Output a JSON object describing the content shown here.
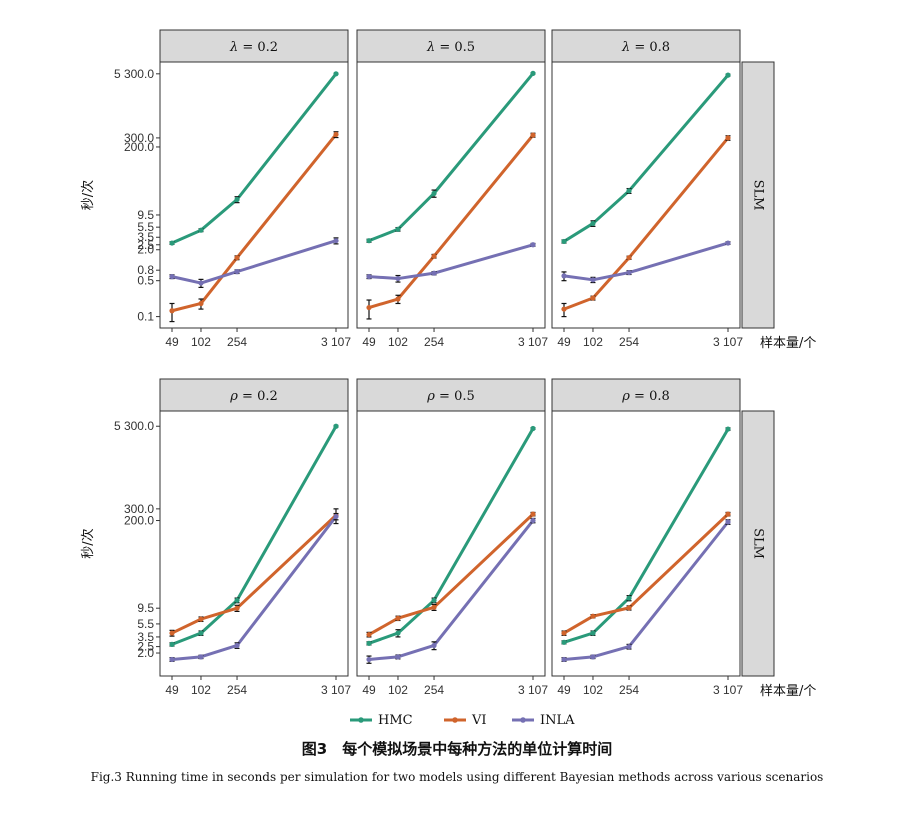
{
  "chart_data": {
    "type": "line",
    "x_label": "样本量/个",
    "y_label": "秒/次",
    "x": [
      49,
      102,
      254,
      3107
    ],
    "x_tick_labels": [
      "49",
      "102",
      "254",
      "3 107"
    ],
    "legend_position": "bottom",
    "series_styles": [
      {
        "name": "HMC",
        "color": "#2a9a7a"
      },
      {
        "name": "VI",
        "color": "#d0642c"
      },
      {
        "name": "INLA",
        "color": "#7570b3"
      }
    ],
    "rows": [
      {
        "row_label": "SLM",
        "y_ticks": [
          0.1,
          0.5,
          0.8,
          2.0,
          2.5,
          3.5,
          5.5,
          9.5,
          200.0,
          300.0,
          5300.0
        ],
        "y_tick_labels": [
          "0.1",
          "0.5",
          "0.8",
          "2.0",
          "2.5",
          "3.5",
          "5.5",
          "9.5",
          "200.0",
          "300.0",
          "5 300.0"
        ],
        "ylim": [
          0.06,
          9000
        ],
        "panels": [
          {
            "strip": {
              "symbol": "λ",
              "text": " = 0.2"
            },
            "series": [
              {
                "name": "HMC",
                "values": [
                  2.7,
                  4.8,
                  19,
                  5300
                ],
                "err": [
                  0.15,
                  0.3,
                  2.5,
                  120
                ]
              },
              {
                "name": "VI",
                "values": [
                  0.13,
                  0.18,
                  1.4,
                  350
                ],
                "err": [
                  0.05,
                  0.04,
                  0.12,
                  45
                ]
              },
              {
                "name": "INLA",
                "values": [
                  0.6,
                  0.45,
                  0.75,
                  3.0
                ],
                "err": [
                  0.05,
                  0.08,
                  0.06,
                  0.4
                ]
              }
            ]
          },
          {
            "strip": {
              "symbol": "λ",
              "text": " = 0.5"
            },
            "series": [
              {
                "name": "HMC",
                "values": [
                  3.0,
                  5.0,
                  25,
                  5400
                ],
                "err": [
                  0.2,
                  0.4,
                  4,
                  150
                ]
              },
              {
                "name": "VI",
                "values": [
                  0.15,
                  0.22,
                  1.5,
                  340
                ],
                "err": [
                  0.06,
                  0.04,
                  0.12,
                  30
                ]
              },
              {
                "name": "INLA",
                "values": [
                  0.6,
                  0.55,
                  0.7,
                  2.5
                ],
                "err": [
                  0.05,
                  0.08,
                  0.05,
                  0.15
                ]
              }
            ]
          },
          {
            "strip": {
              "symbol": "λ",
              "text": " = 0.8"
            },
            "series": [
              {
                "name": "HMC",
                "values": [
                  2.9,
                  6.5,
                  28,
                  5000
                ],
                "err": [
                  0.2,
                  0.8,
                  3,
                  200
                ]
              },
              {
                "name": "VI",
                "values": [
                  0.14,
                  0.23,
                  1.4,
                  300
                ],
                "err": [
                  0.04,
                  0.02,
                  0.1,
                  30
                ]
              },
              {
                "name": "INLA",
                "values": [
                  0.62,
                  0.52,
                  0.72,
                  2.7
                ],
                "err": [
                  0.12,
                  0.06,
                  0.06,
                  0.15
                ]
              }
            ]
          }
        ]
      },
      {
        "row_label": "SLM",
        "y_ticks": [
          2.0,
          2.5,
          3.5,
          5.5,
          9.5,
          200.0,
          300.0,
          5300.0
        ],
        "y_tick_labels": [
          "2.0",
          "2.5",
          "3.5",
          "5.5",
          "9.5",
          "200.0",
          "300.0",
          "5 300.0"
        ],
        "ylim": [
          0.9,
          9000
        ],
        "panels": [
          {
            "strip": {
              "symbol": "ρ",
              "text": " = 0.2"
            },
            "series": [
              {
                "name": "HMC",
                "values": [
                  2.7,
                  4.0,
                  12.5,
                  5300
                ],
                "err": [
                  0.15,
                  0.3,
                  1.0,
                  150
                ]
              },
              {
                "name": "VI",
                "values": [
                  4.0,
                  6.5,
                  9.5,
                  240
                ],
                "err": [
                  0.4,
                  0.5,
                  1.0,
                  60
                ]
              },
              {
                "name": "INLA",
                "values": [
                  1.6,
                  1.75,
                  2.6,
                  230
                ],
                "err": [
                  0.1,
                  0.1,
                  0.25,
                  25
                ]
              }
            ]
          },
          {
            "strip": {
              "symbol": "ρ",
              "text": " = 0.5"
            },
            "series": [
              {
                "name": "HMC",
                "values": [
                  2.8,
                  4.0,
                  12.5,
                  4900
                ],
                "err": [
                  0.15,
                  0.5,
                  1.0,
                  150
                ]
              },
              {
                "name": "VI",
                "values": [
                  3.8,
                  6.7,
                  9.8,
                  250
                ],
                "err": [
                  0.3,
                  0.5,
                  1.0,
                  15
                ]
              },
              {
                "name": "INLA",
                "values": [
                  1.6,
                  1.75,
                  2.6,
                  200
                ],
                "err": [
                  0.2,
                  0.12,
                  0.35,
                  15
                ]
              }
            ]
          },
          {
            "strip": {
              "symbol": "ρ",
              "text": " = 0.8"
            },
            "series": [
              {
                "name": "HMC",
                "values": [
                  2.9,
                  4.0,
                  13.5,
                  4800
                ],
                "err": [
                  0.15,
                  0.3,
                  1.2,
                  200
                ]
              },
              {
                "name": "VI",
                "values": [
                  4.0,
                  7.2,
                  9.6,
                  250
                ],
                "err": [
                  0.3,
                  0.4,
                  0.7,
                  15
                ]
              },
              {
                "name": "INLA",
                "values": [
                  1.6,
                  1.75,
                  2.5,
                  190
                ],
                "err": [
                  0.1,
                  0.1,
                  0.2,
                  15
                ]
              }
            ]
          }
        ]
      }
    ]
  },
  "caption": {
    "cn": "图3　每个模拟场景中每种方法的单位计算时间",
    "en": "Fig.3  Running time in seconds per simulation for two models using different Bayesian methods across various scenarios"
  }
}
